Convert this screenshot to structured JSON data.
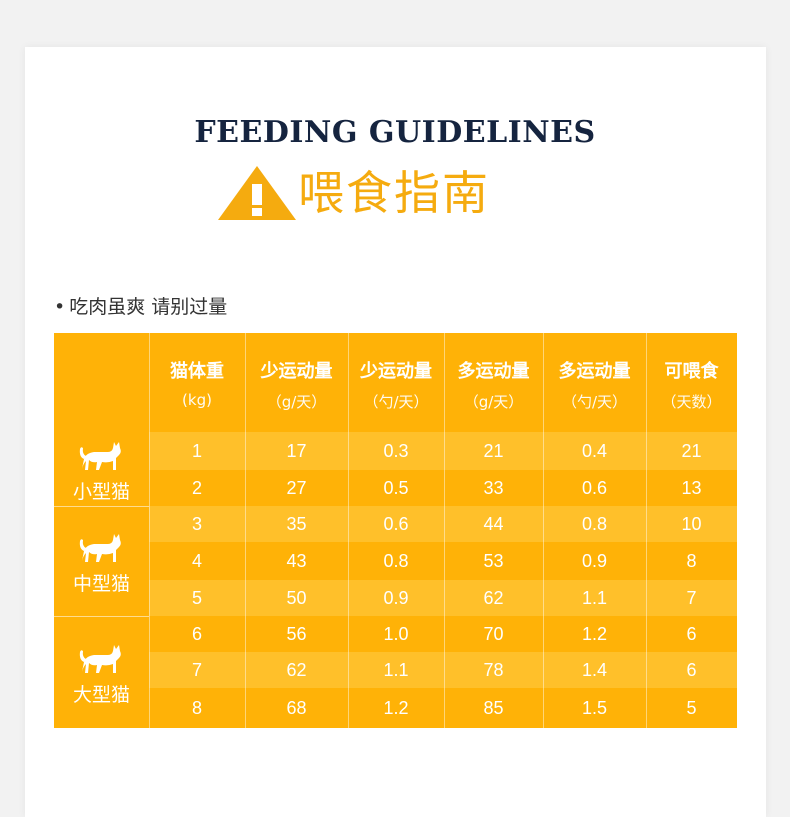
{
  "title_en": "FEEDING GUIDELINES",
  "title_cn": "喂食指南",
  "icon": "warning-triangle-icon",
  "note": "吃肉虽爽 请别过量",
  "colors": {
    "accent": "#f5ab0f",
    "table_bg": "#ffb207",
    "title": "#15243f"
  },
  "table": {
    "headers": [
      {
        "label": "猫体重",
        "unit": "(kg)"
      },
      {
        "label": "少运动量",
        "unit": "（g/天）"
      },
      {
        "label": "少运动量",
        "unit": "（勺/天）"
      },
      {
        "label": "多运动量",
        "unit": "（g/天）"
      },
      {
        "label": "多运动量",
        "unit": "（勺/天）"
      },
      {
        "label": "可喂食",
        "unit": "（天数）"
      }
    ],
    "groups": [
      {
        "label": "小型猫",
        "icon": "cat-icon"
      },
      {
        "label": "中型猫",
        "icon": "cat-icon"
      },
      {
        "label": "大型猫",
        "icon": "cat-icon"
      }
    ],
    "rows": [
      [
        "1",
        "17",
        "0.3",
        "21",
        "0.4",
        "21"
      ],
      [
        "2",
        "27",
        "0.5",
        "33",
        "0.6",
        "13"
      ],
      [
        "3",
        "35",
        "0.6",
        "44",
        "0.8",
        "10"
      ],
      [
        "4",
        "43",
        "0.8",
        "53",
        "0.9",
        "8"
      ],
      [
        "5",
        "50",
        "0.9",
        "62",
        "1.1",
        "7"
      ],
      [
        "6",
        "56",
        "1.0",
        "70",
        "1.2",
        "6"
      ],
      [
        "7",
        "62",
        "1.1",
        "78",
        "1.4",
        "6"
      ],
      [
        "8",
        "68",
        "1.2",
        "85",
        "1.5",
        "5"
      ]
    ]
  }
}
